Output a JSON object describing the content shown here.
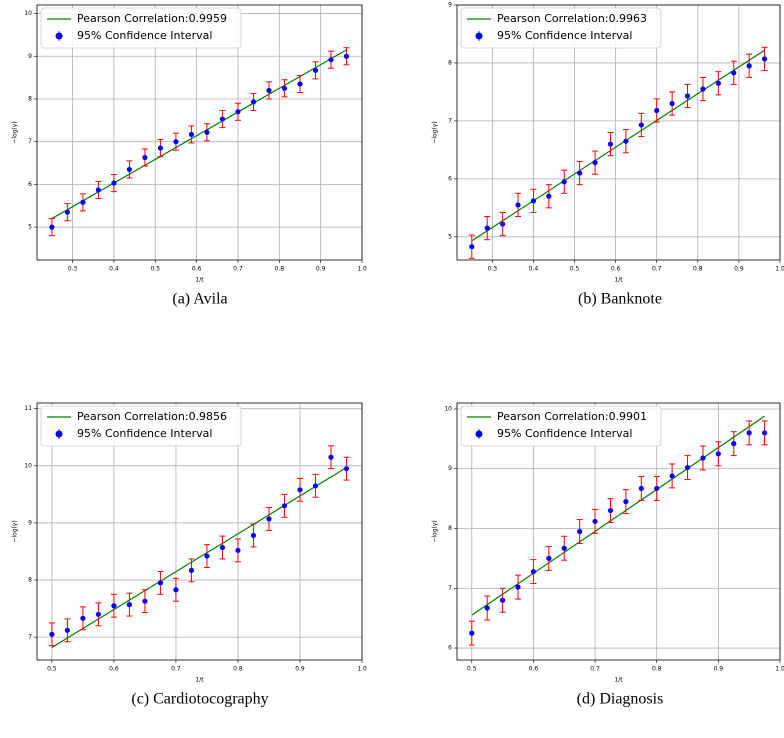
{
  "chart_data": [
    {
      "type": "scatter",
      "caption": "(a) Avila",
      "xlabel": "1/t",
      "ylabel": "−log(γ)",
      "xlim": [
        0.214,
        1.0
      ],
      "ylim": [
        4.23,
        10.2
      ],
      "xticks": [
        0.3,
        0.4,
        0.5,
        0.6,
        0.7,
        0.8,
        0.9,
        {
          "value": 1,
          "label": "1.0"
        }
      ],
      "yticks": [
        5,
        6,
        7,
        8,
        9,
        10
      ],
      "grid": true,
      "legend": "upper left",
      "series": [
        {
          "name": "Pearson Correlation:0.9959",
          "style": "line",
          "color": "#008000",
          "x": [
            0.25,
            0.9625
          ],
          "values": [
            5.2,
            9.15
          ]
        },
        {
          "name": "95% Confidence Interval",
          "style": "errorbar",
          "color": "#0000ff",
          "error_color": "#ff0000",
          "x": [
            0.25,
            0.2875,
            0.325,
            0.3625,
            0.4,
            0.4375,
            0.475,
            0.5125,
            0.55,
            0.5875,
            0.625,
            0.6625,
            0.7,
            0.7375,
            0.775,
            0.8125,
            0.85,
            0.8875,
            0.925,
            0.9625
          ],
          "values": [
            5.0,
            5.35,
            5.58,
            5.87,
            6.03,
            6.35,
            6.63,
            6.85,
            7.0,
            7.17,
            7.22,
            7.53,
            7.7,
            7.93,
            8.2,
            8.25,
            8.35,
            8.67,
            8.92,
            9.0
          ],
          "errors": [
            0.2,
            0.2,
            0.2,
            0.2,
            0.2,
            0.2,
            0.2,
            0.2,
            0.2,
            0.2,
            0.2,
            0.2,
            0.2,
            0.2,
            0.2,
            0.2,
            0.2,
            0.2,
            0.2,
            0.2
          ]
        }
      ]
    },
    {
      "type": "scatter",
      "caption": "(b) Banknote",
      "xlabel": "1/t",
      "ylabel": "−log(γ)",
      "xlim": [
        0.214,
        1.0
      ],
      "ylim": [
        4.6,
        9.0
      ],
      "xticks": [
        0.3,
        0.4,
        0.5,
        0.6,
        0.7,
        0.8,
        0.9,
        {
          "value": 1,
          "label": "1.0"
        }
      ],
      "yticks": [
        5,
        6,
        7,
        8,
        9
      ],
      "grid": true,
      "legend": "upper left",
      "series": [
        {
          "name": "Pearson Correlation:0.9963",
          "style": "line",
          "color": "#008000",
          "x": [
            0.25,
            0.9625
          ],
          "values": [
            4.93,
            8.22
          ]
        },
        {
          "name": "95% Confidence Interval",
          "style": "errorbar",
          "color": "#0000ff",
          "error_color": "#ff0000",
          "x": [
            0.25,
            0.2875,
            0.325,
            0.3625,
            0.4,
            0.4375,
            0.475,
            0.5125,
            0.55,
            0.5875,
            0.625,
            0.6625,
            0.7,
            0.7375,
            0.775,
            0.8125,
            0.85,
            0.8875,
            0.925,
            0.9625
          ],
          "values": [
            4.83,
            5.15,
            5.22,
            5.55,
            5.62,
            5.7,
            5.95,
            6.1,
            6.28,
            6.6,
            6.65,
            6.93,
            7.18,
            7.3,
            7.43,
            7.55,
            7.65,
            7.83,
            7.95,
            8.07
          ],
          "errors": [
            0.2,
            0.2,
            0.2,
            0.2,
            0.2,
            0.2,
            0.2,
            0.2,
            0.2,
            0.2,
            0.2,
            0.2,
            0.2,
            0.2,
            0.2,
            0.2,
            0.2,
            0.2,
            0.2,
            0.2
          ]
        }
      ]
    },
    {
      "type": "scatter",
      "caption": "(c) Cardiotocography",
      "xlabel": "1/t",
      "ylabel": "−log(γ)",
      "xlim": [
        0.476,
        1.0
      ],
      "ylim": [
        6.6,
        11.1
      ],
      "xticks": [
        0.5,
        0.6,
        0.7,
        0.8,
        0.9,
        {
          "value": 1,
          "label": "1.0"
        }
      ],
      "yticks": [
        7,
        8,
        9,
        10,
        11
      ],
      "grid": true,
      "legend": "upper left",
      "series": [
        {
          "name": "Pearson Correlation:0.9856",
          "style": "line",
          "color": "#008000",
          "x": [
            0.5,
            0.975
          ],
          "values": [
            6.82,
            9.97
          ]
        },
        {
          "name": "95% Confidence Interval",
          "style": "errorbar",
          "color": "#0000ff",
          "error_color": "#ff0000",
          "x": [
            0.5,
            0.525,
            0.55,
            0.575,
            0.6,
            0.625,
            0.65,
            0.675,
            0.7,
            0.725,
            0.75,
            0.775,
            0.8,
            0.825,
            0.85,
            0.875,
            0.9,
            0.925,
            0.95,
            0.975
          ],
          "values": [
            7.05,
            7.12,
            7.33,
            7.4,
            7.55,
            7.57,
            7.63,
            7.95,
            7.83,
            8.17,
            8.42,
            8.57,
            8.52,
            8.78,
            9.07,
            9.3,
            9.58,
            9.65,
            10.15,
            9.95
          ],
          "errors": [
            0.2,
            0.2,
            0.2,
            0.2,
            0.2,
            0.2,
            0.2,
            0.2,
            0.2,
            0.2,
            0.2,
            0.2,
            0.2,
            0.2,
            0.2,
            0.2,
            0.2,
            0.2,
            0.2,
            0.2
          ]
        }
      ]
    },
    {
      "type": "scatter",
      "caption": "(d) Diagnosis",
      "xlabel": "1/t",
      "ylabel": "−log(γ)",
      "xlim": [
        0.476,
        1.0
      ],
      "ylim": [
        5.8,
        10.1
      ],
      "xticks": [
        0.5,
        0.6,
        0.7,
        0.8,
        0.9,
        {
          "value": 1,
          "label": "1.0"
        }
      ],
      "yticks": [
        6,
        7,
        8,
        9,
        10
      ],
      "grid": true,
      "legend": "upper left",
      "series": [
        {
          "name": "Pearson Correlation:0.9901",
          "style": "line",
          "color": "#008000",
          "x": [
            0.5,
            0.975
          ],
          "values": [
            6.55,
            9.88
          ]
        },
        {
          "name": "95% Confidence Interval",
          "style": "errorbar",
          "color": "#0000ff",
          "error_color": "#ff0000",
          "x": [
            0.5,
            0.525,
            0.55,
            0.575,
            0.6,
            0.625,
            0.65,
            0.675,
            0.7,
            0.725,
            0.75,
            0.775,
            0.8,
            0.825,
            0.85,
            0.875,
            0.9,
            0.925,
            0.95,
            0.975
          ],
          "values": [
            6.25,
            6.67,
            6.8,
            7.02,
            7.28,
            7.5,
            7.67,
            7.95,
            8.12,
            8.3,
            8.45,
            8.67,
            8.67,
            8.88,
            9.02,
            9.18,
            9.25,
            9.42,
            9.6,
            9.6
          ],
          "errors": [
            0.2,
            0.2,
            0.2,
            0.2,
            0.2,
            0.2,
            0.2,
            0.2,
            0.2,
            0.2,
            0.2,
            0.2,
            0.2,
            0.2,
            0.2,
            0.2,
            0.2,
            0.2,
            0.2,
            0.2
          ]
        }
      ]
    }
  ]
}
